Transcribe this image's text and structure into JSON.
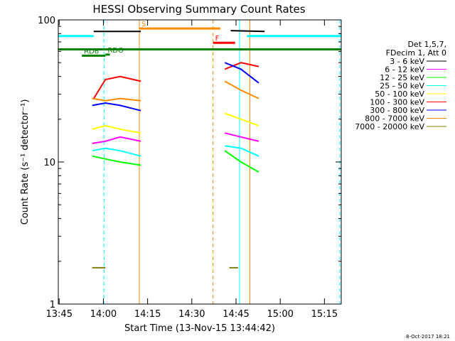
{
  "chart_data": {
    "type": "line",
    "title": "HESSI Observing Summary Count Rates",
    "xlabel": "Start Time (13-Nov-15 13:44:42)",
    "ylabel": "Count Rate (s⁻¹ detector⁻¹)",
    "x_range_minutes": [
      0,
      96
    ],
    "yscale": "log",
    "ylim": [
      1,
      100
    ],
    "x_ticks": [
      {
        "minute": 0.3,
        "label": "13:45"
      },
      {
        "minute": 15.3,
        "label": "14:00"
      },
      {
        "minute": 30.3,
        "label": "14:15"
      },
      {
        "minute": 45.3,
        "label": "14:30"
      },
      {
        "minute": 60.3,
        "label": "14:45"
      },
      {
        "minute": 75.3,
        "label": "15:00"
      },
      {
        "minute": 90.3,
        "label": "15:15"
      }
    ],
    "y_ticks": [
      {
        "value": 1,
        "label": "1"
      },
      {
        "value": 10,
        "label": "10"
      },
      {
        "value": 100,
        "label": "100"
      }
    ],
    "legend_header": [
      "Det 1,5,7,",
      "FDecim 1, Att 0"
    ],
    "legend_position": "right",
    "series": [
      {
        "name": "3 - 6 keV",
        "color": "#000000",
        "segments": [
          [
            [
              12,
              83
            ],
            [
              28,
              83
            ]
          ],
          [
            [
              58.5,
              84
            ],
            [
              70,
              83
            ]
          ]
        ]
      },
      {
        "name": "6 - 12 keV",
        "color": "#ff00ff",
        "segments": [
          [
            [
              11.5,
              13.5
            ],
            [
              16,
              14
            ],
            [
              21,
              15
            ],
            [
              28,
              14
            ]
          ],
          [
            [
              56.5,
              16
            ],
            [
              62,
              15
            ],
            [
              68,
              14
            ]
          ]
        ]
      },
      {
        "name": "12 - 25 keV",
        "color": "#00ff00",
        "segments": [
          [
            [
              11.5,
              11
            ],
            [
              16,
              10.5
            ],
            [
              21,
              10
            ],
            [
              28,
              9.5
            ]
          ],
          [
            [
              56.5,
              12
            ],
            [
              62,
              10
            ],
            [
              68,
              8.5
            ]
          ]
        ]
      },
      {
        "name": "25 - 50 keV",
        "color": "#00ffff",
        "segments": [
          [
            [
              11.5,
              12
            ],
            [
              16,
              12.5
            ],
            [
              21,
              12
            ],
            [
              28,
              11
            ]
          ],
          [
            [
              56.5,
              13
            ],
            [
              62,
              12.5
            ],
            [
              68,
              11
            ]
          ]
        ]
      },
      {
        "name": "50 - 100 keV",
        "color": "#ffff00",
        "segments": [
          [
            [
              11.5,
              17
            ],
            [
              16,
              18
            ],
            [
              21,
              17
            ],
            [
              28,
              16
            ]
          ],
          [
            [
              56.5,
              22
            ],
            [
              62,
              20
            ],
            [
              68,
              18
            ]
          ]
        ]
      },
      {
        "name": "100 - 300 keV",
        "color": "#ff0000",
        "segments": [
          [
            [
              12,
              28
            ],
            [
              16,
              38
            ],
            [
              21,
              40
            ],
            [
              28,
              37
            ]
          ],
          [
            [
              56.5,
              45
            ],
            [
              62,
              50
            ],
            [
              68,
              47
            ]
          ]
        ]
      },
      {
        "name": "300 - 800 keV",
        "color": "#0000ff",
        "segments": [
          [
            [
              11.5,
              25
            ],
            [
              16,
              26
            ],
            [
              21,
              25
            ],
            [
              28,
              23
            ]
          ],
          [
            [
              56.5,
              50
            ],
            [
              62,
              45
            ],
            [
              68,
              36
            ]
          ]
        ]
      },
      {
        "name": "800 - 7000 keV",
        "color": "#ff8c00",
        "segments": [
          [
            [
              11.5,
              28
            ],
            [
              16,
              27
            ],
            [
              21,
              28
            ],
            [
              28,
              27
            ]
          ],
          [
            [
              56.5,
              37
            ],
            [
              62,
              32
            ],
            [
              68,
              28
            ]
          ]
        ]
      },
      {
        "name": "7000 - 20000 keV",
        "color": "#808000",
        "segments": [
          [
            [
              11.5,
              1.8
            ],
            [
              14,
              1.8
            ],
            [
              16,
              1.8
            ]
          ],
          [
            [
              58,
              1.8
            ],
            [
              61,
              1.8
            ]
          ]
        ]
      }
    ],
    "state_bars": [
      {
        "label": "RD6",
        "color": "#008000",
        "y_value": 56,
        "x_range_minutes": [
          8,
          16
        ]
      },
      {
        "label": "RDO",
        "color": "#008000",
        "y_value": 57,
        "x_range_minutes": [
          16,
          17.5
        ]
      },
      {
        "label": "",
        "color": "#008000",
        "y_value": 62,
        "x_range_minutes": [
          0,
          96
        ]
      },
      {
        "label": "S",
        "color": "#ff8c00",
        "y_value": 87,
        "x_range_minutes": [
          27.5,
          55
        ]
      },
      {
        "label": "F",
        "color": "#ff0000",
        "y_value": 69,
        "x_range_minutes": [
          52.5,
          60
        ]
      },
      {
        "label": "",
        "color": "#00ffff",
        "y_value": 77,
        "x_range_minutes": [
          0,
          12
        ]
      },
      {
        "label": "",
        "color": "#00ffff",
        "y_value": 77,
        "x_range_minutes": [
          64,
          96
        ]
      }
    ],
    "vertical_lines": [
      {
        "minute": 0,
        "color": "#00ffff",
        "style": "solid"
      },
      {
        "minute": 15.5,
        "color": "#00ffff",
        "style": "dashed"
      },
      {
        "minute": 61.5,
        "color": "#00ffff",
        "style": "solid"
      },
      {
        "minute": 95.5,
        "color": "#00ffff",
        "style": "dashed"
      },
      {
        "minute": 27.5,
        "color": "#ff8c00",
        "style": "solid"
      },
      {
        "minute": 52.5,
        "color": "#ff8c00",
        "style": "dashed"
      },
      {
        "minute": 65,
        "color": "#ff8c00",
        "style": "solid"
      }
    ],
    "footer": "8-Oct-2017 18:21"
  }
}
